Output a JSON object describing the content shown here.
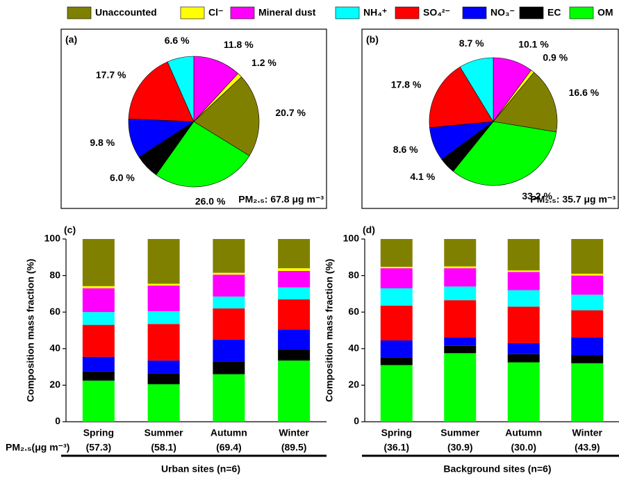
{
  "chart_data": [
    {
      "type": "pie",
      "title": "(a)",
      "note": "PM₂.₅: 67.8 μg m⁻³",
      "values": [
        11.8,
        1.2,
        20.7,
        26.0,
        6.0,
        9.8,
        17.7,
        6.6
      ],
      "value_labels": [
        "11.8 %",
        "1.2 %",
        "20.7 %",
        "26.0 %",
        "6.0 %",
        "9.8 %",
        "17.7 %",
        "6.6 %"
      ],
      "colors": [
        "#ff00ff",
        "#ffff00",
        "#808000",
        "#00ff00",
        "#000000",
        "#0000ff",
        "#ff0000",
        "#00ffff"
      ]
    },
    {
      "type": "pie",
      "title": "(b)",
      "note": "PM₂.₅: 35.7 μg m⁻³",
      "values": [
        10.1,
        0.9,
        16.6,
        33.2,
        4.1,
        8.6,
        17.8,
        8.7
      ],
      "value_labels": [
        "10.1 %",
        "0.9 %",
        "16.6 %",
        "33.2 %",
        "4.1 %",
        "8.6 %",
        "17.8 %",
        "8.7 %"
      ],
      "colors": [
        "#ff00ff",
        "#ffff00",
        "#808000",
        "#00ff00",
        "#000000",
        "#0000ff",
        "#ff0000",
        "#00ffff"
      ]
    },
    {
      "type": "bar",
      "title": "(c)",
      "y_label": "Composition mass fraction (%)",
      "x_label": "Urban sites (n=6)",
      "pm_title": "PM₂.₅(μg m⁻³)",
      "categories": [
        "Spring",
        "Summer",
        "Autumn",
        "Winter"
      ],
      "pm_values": [
        57.3,
        58.1,
        69.4,
        89.5
      ],
      "pm_labels": [
        "(57.3)",
        "(58.1)",
        "(69.4)",
        "(89.5)"
      ],
      "ylim": [
        0,
        100
      ],
      "yticks": [
        0,
        20,
        40,
        60,
        80,
        100
      ],
      "series": [
        {
          "name": "OM",
          "color": "#00ff00",
          "values": [
            22.5,
            20.5,
            26,
            33.5
          ]
        },
        {
          "name": "EC",
          "color": "#000000",
          "values": [
            5,
            6,
            7,
            6
          ]
        },
        {
          "name": "NO₃⁻",
          "color": "#0000ff",
          "values": [
            8,
            7,
            12,
            11
          ]
        },
        {
          "name": "SO₄²⁻",
          "color": "#ff0000",
          "values": [
            17.5,
            20,
            17,
            16.5
          ]
        },
        {
          "name": "NH₄⁺",
          "color": "#00ffff",
          "values": [
            7,
            7,
            6.5,
            6.5
          ]
        },
        {
          "name": "Mineral dust",
          "color": "#ff00ff",
          "values": [
            13,
            14,
            12,
            9
          ]
        },
        {
          "name": "Cl⁻",
          "color": "#ffff00",
          "values": [
            1.2,
            1,
            1,
            1.5
          ]
        },
        {
          "name": "Unaccounted",
          "color": "#808000",
          "values": [
            25.8,
            24.5,
            18.5,
            16
          ]
        }
      ]
    },
    {
      "type": "bar",
      "title": "(d)",
      "y_label": "Composition mass fraction (%)",
      "x_label": "Background sites (n=6)",
      "categories": [
        "Spring",
        "Summer",
        "Autumn",
        "Winter"
      ],
      "pm_values": [
        36.1,
        30.9,
        30.0,
        43.9
      ],
      "pm_labels": [
        "(36.1)",
        "(30.9)",
        "(30.0)",
        "(43.9)"
      ],
      "ylim": [
        0,
        100
      ],
      "yticks": [
        0,
        20,
        40,
        60,
        80,
        100
      ],
      "series": [
        {
          "color": "#00ff00",
          "values": [
            31,
            37.5,
            32.5,
            32
          ]
        },
        {
          "color": "#000000",
          "values": [
            4,
            4,
            4.5,
            4.5
          ]
        },
        {
          "color": "#0000ff",
          "values": [
            9.5,
            4.5,
            6,
            9.5
          ]
        },
        {
          "color": "#ff0000",
          "values": [
            19,
            20.5,
            20,
            15
          ]
        },
        {
          "color": "#00ffff",
          "values": [
            9.5,
            7.5,
            9,
            8.5
          ]
        },
        {
          "color": "#ff00ff",
          "values": [
            11,
            10,
            10,
            10.5
          ]
        },
        {
          "color": "#ffff00",
          "values": [
            0.8,
            1,
            0.8,
            1
          ]
        },
        {
          "color": "#808000",
          "values": [
            15.2,
            15,
            17.2,
            19
          ]
        }
      ]
    }
  ]
}
